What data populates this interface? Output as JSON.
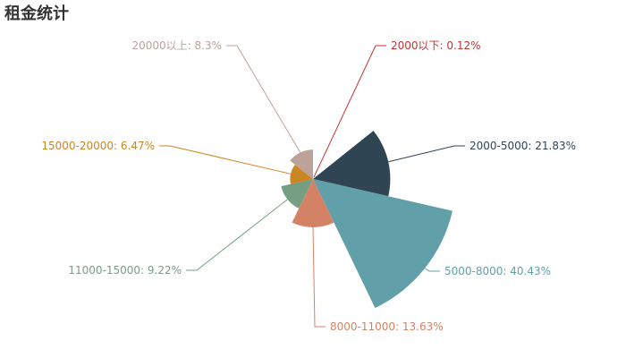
{
  "chart_data": {
    "type": "pie",
    "subtype": "nightingale-rose",
    "title": "租金统计",
    "categories": [
      "2000以下",
      "2000-5000",
      "5000-8000",
      "8000-11000",
      "11000-15000",
      "15000-20000",
      "20000以上"
    ],
    "values": [
      0.12,
      21.83,
      40.43,
      13.63,
      9.22,
      6.47,
      8.3
    ],
    "value_unit": "%",
    "colors": [
      "#c23531",
      "#2f4554",
      "#61a0a8",
      "#d48265",
      "#749f83",
      "#ca8622",
      "#bda29a"
    ],
    "labels": [
      "2000以下: 0.12%",
      "2000-5000: 21.83%",
      "5000-8000: 40.43%",
      "8000-11000: 13.63%",
      "11000-15000: 9.22%",
      "15000-20000: 6.47%",
      "20000以上: 8.3%"
    ]
  }
}
